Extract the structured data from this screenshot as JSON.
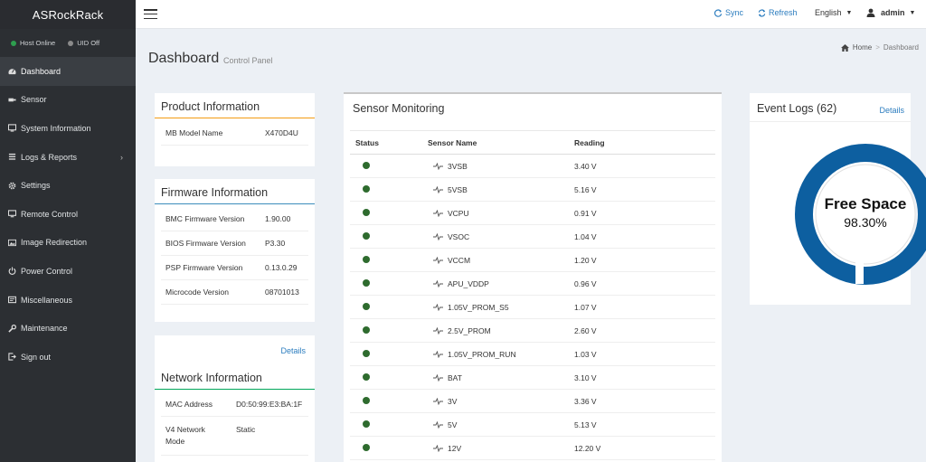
{
  "sidebar": {
    "brand": "ASRockRack",
    "status": {
      "host": {
        "label": "Host Online",
        "color": "#2e9e4f"
      },
      "uid": {
        "label": "UID Off",
        "color": "#8a8a8a"
      }
    },
    "items": [
      {
        "label": "Dashboard",
        "icon": "dashboard-icon",
        "active": true
      },
      {
        "label": "Sensor",
        "icon": "sensor-icon"
      },
      {
        "label": "System Information",
        "icon": "info-icon"
      },
      {
        "label": "Logs & Reports",
        "icon": "logs-icon",
        "has_submenu": true
      },
      {
        "label": "Settings",
        "icon": "gear-icon"
      },
      {
        "label": "Remote Control",
        "icon": "monitor-icon"
      },
      {
        "label": "Image Redirection",
        "icon": "image-icon"
      },
      {
        "label": "Power Control",
        "icon": "power-icon"
      },
      {
        "label": "Miscellaneous",
        "icon": "misc-icon"
      },
      {
        "label": "Maintenance",
        "icon": "wrench-icon"
      },
      {
        "label": "Sign out",
        "icon": "sign-out-icon"
      }
    ]
  },
  "header": {
    "sync_label": "Sync",
    "refresh_label": "Refresh",
    "language_label": "English",
    "user_label": "admin"
  },
  "page": {
    "title": "Dashboard",
    "subtitle": "Control Panel",
    "breadcrumb_home": "Home",
    "breadcrumb_current": "Dashboard"
  },
  "product": {
    "title": "Product Information",
    "rows": [
      {
        "label": "MB Model Name",
        "value": "X470D4U"
      }
    ]
  },
  "firmware": {
    "title": "Firmware Information",
    "rows": [
      {
        "label": "BMC Firmware Version",
        "value": "1.90.00"
      },
      {
        "label": "BIOS Firmware Version",
        "value": "P3.30"
      },
      {
        "label": "PSP Firmware Version",
        "value": "0.13.0.29"
      },
      {
        "label": "Microcode Version",
        "value": "08701013"
      }
    ]
  },
  "network": {
    "details_label": "Details",
    "title": "Network Information",
    "rows": [
      {
        "label": "MAC Address",
        "value": "D0:50:99:E3:BA:1F"
      },
      {
        "label": "V4 Network Mode",
        "value": "Static"
      }
    ]
  },
  "sensors": {
    "title": "Sensor Monitoring",
    "columns": {
      "status": "Status",
      "name": "Sensor Name",
      "reading": "Reading"
    },
    "status_color": "#2e6b2e",
    "rows": [
      {
        "name": "3VSB",
        "reading": "3.40 V"
      },
      {
        "name": "5VSB",
        "reading": "5.16 V"
      },
      {
        "name": "VCPU",
        "reading": "0.91 V"
      },
      {
        "name": "VSOC",
        "reading": "1.04 V"
      },
      {
        "name": "VCCM",
        "reading": "1.20 V"
      },
      {
        "name": "APU_VDDP",
        "reading": "0.96 V"
      },
      {
        "name": "1.05V_PROM_S5",
        "reading": "1.07 V"
      },
      {
        "name": "2.5V_PROM",
        "reading": "2.60 V"
      },
      {
        "name": "1.05V_PROM_RUN",
        "reading": "1.03 V"
      },
      {
        "name": "BAT",
        "reading": "3.10 V"
      },
      {
        "name": "3V",
        "reading": "3.36 V"
      },
      {
        "name": "5V",
        "reading": "5.13 V"
      },
      {
        "name": "12V",
        "reading": "12.20 V"
      }
    ]
  },
  "events": {
    "title": "Event Logs (62)",
    "details_label": "Details",
    "gauge_label": "Free Space",
    "gauge_value": "98.30%",
    "free_fraction": 0.983,
    "ring_color": "#0d5fa0"
  }
}
